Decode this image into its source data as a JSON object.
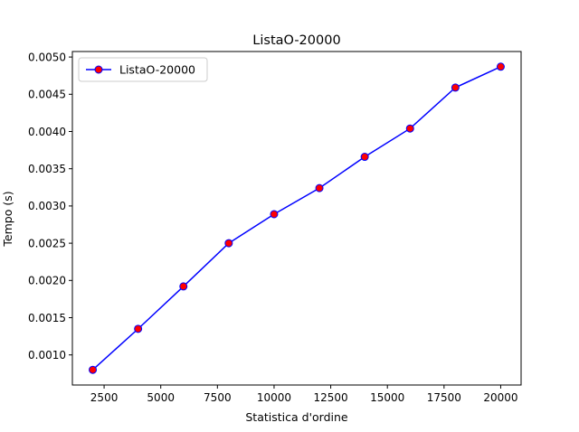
{
  "chart_data": {
    "type": "line",
    "title": "ListaO-20000",
    "xlabel": "Statistica d'ordine",
    "ylabel": "Tempo (s)",
    "x": [
      2000,
      4000,
      6000,
      8000,
      10000,
      12000,
      14000,
      16000,
      18000,
      20000
    ],
    "series": [
      {
        "name": "ListaO-20000",
        "values": [
          0.0008,
          0.00135,
          0.00192,
          0.0025,
          0.00289,
          0.00324,
          0.00366,
          0.00404,
          0.00459,
          0.00487
        ],
        "line_color": "#0000ff",
        "marker_face": "#ff0000",
        "marker_edge": "#0000ff"
      }
    ],
    "xlim": [
      1100,
      20900
    ],
    "ylim": [
      0.000596,
      0.005074
    ],
    "xticks": [
      2500,
      5000,
      7500,
      10000,
      12500,
      15000,
      17500,
      20000
    ],
    "xtick_labels": [
      "2500",
      "5000",
      "7500",
      "10000",
      "12500",
      "15000",
      "17500",
      "20000"
    ],
    "yticks": [
      0.001,
      0.0015,
      0.002,
      0.0025,
      0.003,
      0.0035,
      0.004,
      0.0045,
      0.005
    ],
    "ytick_labels": [
      "0.0010",
      "0.0015",
      "0.0020",
      "0.0025",
      "0.0030",
      "0.0035",
      "0.0040",
      "0.0045",
      "0.0050"
    ],
    "grid": false,
    "legend": "top-left"
  }
}
